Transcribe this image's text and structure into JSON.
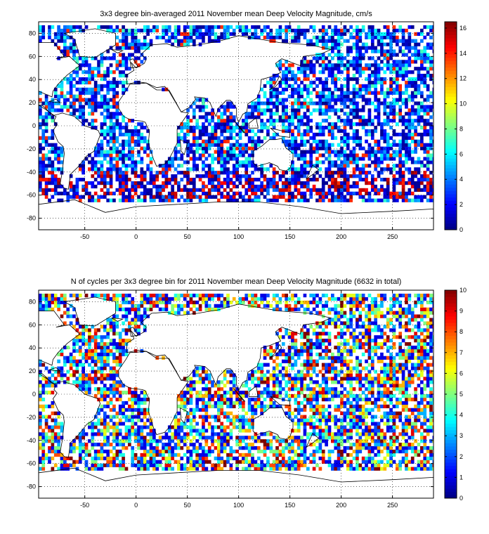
{
  "chart_data": [
    {
      "type": "heatmap",
      "title": "3x3 degree bin-averaged 2011 November mean Deep Velocity Magnitude, cm/s",
      "xlabel": "",
      "ylabel": "",
      "xlim": [
        -95,
        290
      ],
      "ylim": [
        -90,
        90
      ],
      "xticks": [
        -50,
        0,
        50,
        100,
        150,
        200,
        250
      ],
      "yticks": [
        -80,
        -60,
        -40,
        -20,
        0,
        20,
        40,
        60,
        80
      ],
      "grid": true,
      "bin_size_deg": 3,
      "colorbar": {
        "min": 0,
        "max": 16.5,
        "ticks": [
          0,
          2,
          4,
          6,
          8,
          10,
          12,
          14,
          16
        ],
        "colormap": "jet"
      }
    },
    {
      "type": "heatmap",
      "title": "N of cycles per 3x3 degree bin for 2011 November mean Deep Velocity Magnitude (6632 in total)",
      "xlabel": "",
      "ylabel": "",
      "xlim": [
        -95,
        290
      ],
      "ylim": [
        -90,
        90
      ],
      "xticks": [
        -50,
        0,
        50,
        100,
        150,
        200,
        250
      ],
      "yticks": [
        -80,
        -60,
        -40,
        -20,
        0,
        20,
        40,
        60,
        80
      ],
      "grid": true,
      "bin_size_deg": 3,
      "colorbar": {
        "min": 0,
        "max": 10,
        "ticks": [
          0,
          1,
          2,
          3,
          4,
          5,
          6,
          7,
          8,
          9,
          10
        ],
        "colormap": "jet"
      }
    }
  ]
}
